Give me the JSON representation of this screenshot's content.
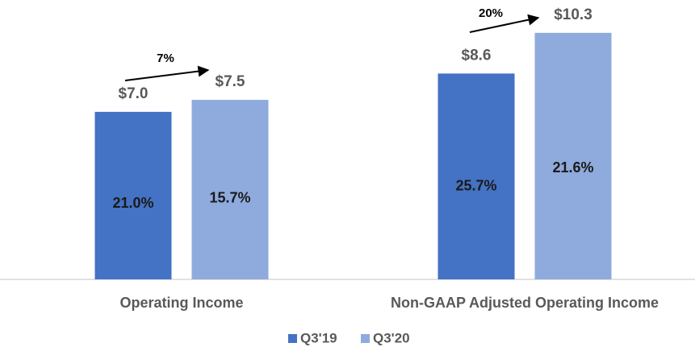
{
  "chart_data": {
    "type": "bar",
    "categories": [
      "Operating Income",
      "Non-GAAP Adjusted Operating Income"
    ],
    "series": [
      {
        "name": "Q3'19",
        "color": "#4472c4",
        "values": [
          7.0,
          8.6
        ],
        "value_labels": [
          "$7.0",
          "$8.6"
        ],
        "margin_labels": [
          "21.0%",
          "25.7%"
        ]
      },
      {
        "name": "Q3'20",
        "color": "#8faadc",
        "values": [
          7.5,
          10.3
        ],
        "value_labels": [
          "$7.5",
          "$10.3"
        ],
        "margin_labels": [
          "15.7%",
          "21.6%"
        ]
      }
    ],
    "annotations": [
      "7%",
      "20%"
    ],
    "ylim": [
      0,
      11
    ],
    "legend": "bottom"
  }
}
